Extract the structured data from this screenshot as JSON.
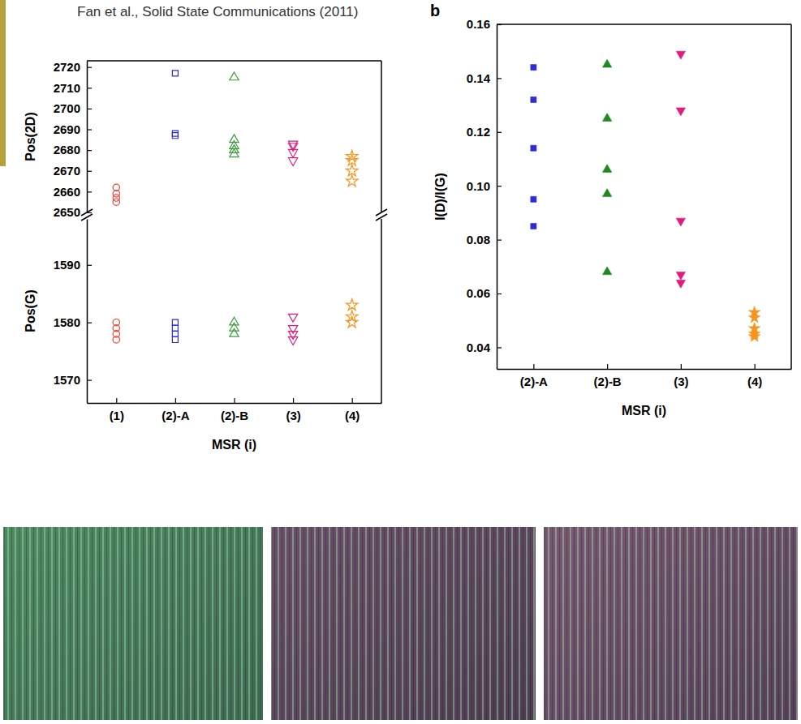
{
  "caption": "Fan et al., Solid State Communications (2011)",
  "chart_data": [
    {
      "type": "scatter",
      "y_label": "Pos(2D)",
      "categories": [
        "(1)",
        "(2)-A",
        "(2)-B",
        "(3)",
        "(4)"
      ],
      "tick_labels": "y",
      "ylim": [
        2650,
        2723
      ],
      "yticks": [
        2650,
        2660,
        2670,
        2680,
        2690,
        2700,
        2710,
        2720
      ],
      "series": [
        {
          "x": [
            "(1)",
            "(1)",
            "(1)",
            "(1)"
          ],
          "values": [
            2662,
            2659,
            2657,
            2655
          ],
          "color": "#ef4136",
          "marker": "circle-open"
        },
        {
          "x": [
            "(2)-A",
            "(2)-A",
            "(2)-A"
          ],
          "values": [
            2717,
            2688,
            2687
          ],
          "color": "#2b2bd9",
          "marker": "square-open"
        },
        {
          "x": [
            "(2)-B",
            "(2)-B",
            "(2)-B",
            "(2)-B",
            "(2)-B"
          ],
          "values": [
            2715,
            2685,
            2682,
            2680,
            2678
          ],
          "color": "#3c9a3c",
          "marker": "triangle-up-open"
        },
        {
          "x": [
            "(3)",
            "(3)",
            "(3)",
            "(3)"
          ],
          "values": [
            2683,
            2682,
            2679,
            2675
          ],
          "color": "#e6197f",
          "marker": "triangle-down-open"
        },
        {
          "x": [
            "(4)",
            "(4)",
            "(4)",
            "(4)"
          ],
          "values": [
            2677,
            2675,
            2670,
            2665
          ],
          "color": "#f7941d",
          "marker": "star-open"
        }
      ]
    },
    {
      "type": "scatter",
      "y_label": "Pos(G)",
      "x_label": "MSR (i)",
      "categories": [
        "(1)",
        "(2)-A",
        "(2)-B",
        "(3)",
        "(4)"
      ],
      "ylim": [
        1566,
        1598
      ],
      "yticks": [
        1570,
        1580,
        1590
      ],
      "series": [
        {
          "x": [
            "(1)",
            "(1)",
            "(1)",
            "(1)"
          ],
          "values": [
            1580,
            1579,
            1578,
            1577
          ],
          "color": "#ef4136",
          "marker": "circle-open"
        },
        {
          "x": [
            "(2)-A",
            "(2)-A",
            "(2)-A",
            "(2)-A"
          ],
          "values": [
            1580,
            1579,
            1578,
            1577
          ],
          "color": "#2b2bd9",
          "marker": "square-open"
        },
        {
          "x": [
            "(2)-B",
            "(2)-B",
            "(2)-B"
          ],
          "values": [
            1580,
            1579,
            1578
          ],
          "color": "#3c9a3c",
          "marker": "triangle-up-open"
        },
        {
          "x": [
            "(3)",
            "(3)",
            "(3)",
            "(3)"
          ],
          "values": [
            1581,
            1579,
            1578,
            1577
          ],
          "color": "#e6197f",
          "marker": "triangle-down-open"
        },
        {
          "x": [
            "(4)",
            "(4)",
            "(4)"
          ],
          "values": [
            1583,
            1581,
            1580
          ],
          "color": "#f7941d",
          "marker": "star-open"
        }
      ]
    },
    {
      "type": "scatter",
      "panel_label": "b",
      "y_label": "I(D)/I(G)",
      "x_label": "MSR (i)",
      "categories": [
        "(2)-A",
        "(2)-B",
        "(3)",
        "(4)"
      ],
      "ylim": [
        0.032,
        0.16
      ],
      "yticks": [
        0.04,
        0.06,
        0.08,
        {
          "value": 0.1,
          "label": "0.10"
        },
        0.12,
        0.14,
        0.16
      ],
      "series": [
        {
          "x": [
            "(2)-A",
            "(2)-A",
            "(2)-A",
            "(2)-A",
            "(2)-A"
          ],
          "values": [
            0.144,
            0.132,
            0.114,
            0.095,
            0.085
          ],
          "color": "#2b2bd9",
          "marker": "square"
        },
        {
          "x": [
            "(2)-B",
            "(2)-B",
            "(2)-B",
            "(2)-B",
            "(2)-B"
          ],
          "values": [
            0.145,
            0.125,
            0.106,
            0.097,
            0.068
          ],
          "color": "#1f8a1f",
          "marker": "triangle-up"
        },
        {
          "x": [
            "(3)",
            "(3)",
            "(3)",
            "(3)",
            "(3)"
          ],
          "values": [
            0.149,
            0.128,
            0.087,
            0.067,
            0.064
          ],
          "color": "#e6197f",
          "marker": "triangle-down"
        },
        {
          "x": [
            "(4)",
            "(4)",
            "(4)",
            "(4)",
            "(4)"
          ],
          "values": [
            0.053,
            0.051,
            0.047,
            0.045,
            0.044
          ],
          "color": "#f7941d",
          "marker": "star"
        }
      ]
    }
  ]
}
